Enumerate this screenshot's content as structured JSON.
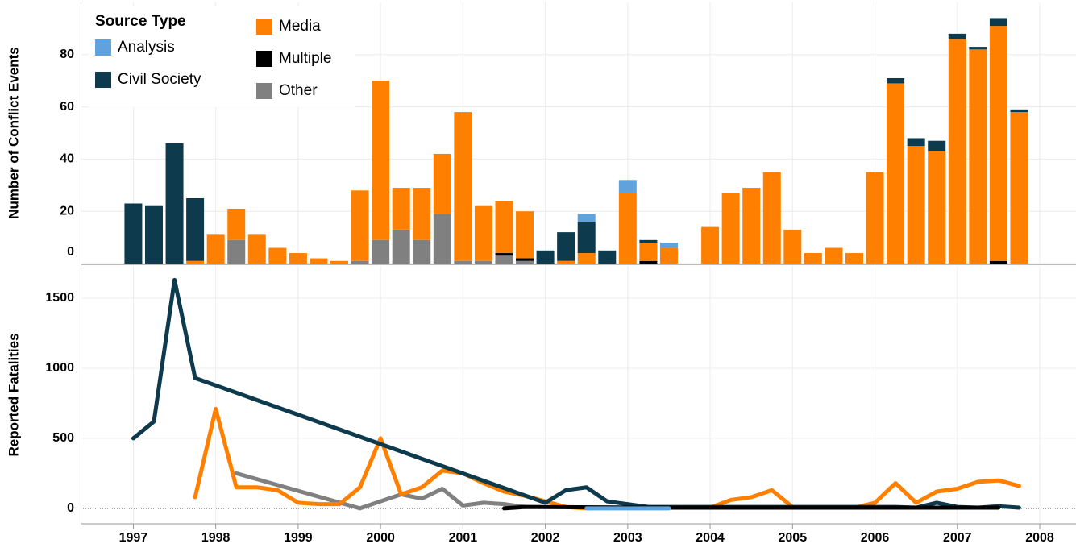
{
  "chart_data": [
    {
      "type": "bar",
      "legend_title": "Source Type",
      "y_label": "Number of Conflict Events",
      "x": [
        1997,
        1997.25,
        1997.5,
        1997.75,
        1998,
        1998.25,
        1998.5,
        1998.75,
        1999,
        1999.25,
        1999.5,
        1999.75,
        2000,
        2000.25,
        2000.5,
        2000.75,
        2001,
        2001.25,
        2001.5,
        2001.75,
        2002,
        2002.25,
        2002.5,
        2002.75,
        2003,
        2003.25,
        2003.5,
        2003.75,
        2004,
        2004.25,
        2004.5,
        2004.75,
        2005,
        2005.25,
        2005.5,
        2005.75,
        2006,
        2006.25,
        2006.5,
        2006.75,
        2007,
        2007.25,
        2007.5,
        2007.75
      ],
      "xlim": [
        1996.36,
        2008.44
      ],
      "xticks": [
        1997,
        1998,
        1999,
        2000,
        2001,
        2002,
        2003,
        2004,
        2005,
        2006,
        2007,
        2008
      ],
      "ylim": [
        0,
        100
      ],
      "yticks": [
        0,
        20,
        40,
        60,
        80
      ],
      "grid": true,
      "series": [
        {
          "name": "Other",
          "color": "#808080",
          "values": [
            0,
            0,
            0,
            0,
            0,
            9,
            0,
            0,
            0,
            0,
            0,
            1,
            9,
            13,
            9,
            19,
            1,
            1,
            3,
            1,
            0,
            0,
            0,
            0,
            0,
            0,
            0,
            0,
            0,
            0,
            0,
            0,
            0,
            0,
            0,
            0,
            0,
            0,
            0,
            0,
            0,
            0,
            0,
            0
          ]
        },
        {
          "name": "Multiple",
          "color": "#000000",
          "values": [
            0,
            0,
            0,
            0,
            0,
            0,
            0,
            0,
            0,
            0,
            0,
            0,
            0,
            0,
            0,
            0,
            0,
            0,
            1,
            1,
            0,
            0,
            0,
            0,
            0,
            1,
            0,
            0,
            0,
            0,
            0,
            0,
            0,
            0,
            0,
            0,
            0,
            0,
            0,
            0,
            0,
            0,
            1,
            0
          ]
        },
        {
          "name": "Media",
          "color": "#ff8000",
          "values": [
            0,
            0,
            0,
            1,
            11,
            12,
            11,
            6,
            4,
            2,
            1,
            27,
            61,
            16,
            20,
            23,
            57,
            21,
            20,
            18,
            0,
            1,
            4,
            0,
            27,
            7,
            6,
            0,
            14,
            27,
            29,
            35,
            13,
            4,
            6,
            4,
            35,
            69,
            45,
            43,
            86,
            82,
            90,
            58
          ]
        },
        {
          "name": "Civil Society",
          "color": "#0d3a4c",
          "values": [
            23,
            22,
            46,
            24,
            0,
            0,
            0,
            0,
            0,
            0,
            0,
            0,
            0,
            0,
            0,
            0,
            0,
            0,
            0,
            0,
            5,
            11,
            12,
            5,
            0,
            1,
            0,
            0,
            0,
            0,
            0,
            0,
            0,
            0,
            0,
            0,
            0,
            2,
            3,
            4,
            2,
            1,
            3,
            1
          ]
        },
        {
          "name": "Analysis",
          "color": "#5fa2dd",
          "values": [
            0,
            0,
            0,
            0,
            0,
            0,
            0,
            0,
            0,
            0,
            0,
            0,
            0,
            0,
            0,
            0,
            0,
            0,
            0,
            0,
            0,
            0,
            3,
            0,
            5,
            0,
            2,
            0,
            0,
            0,
            0,
            0,
            0,
            0,
            0,
            0,
            0,
            0,
            0,
            0,
            0,
            0,
            0,
            0
          ]
        }
      ]
    },
    {
      "type": "line",
      "y_label": "Reported Fatalities",
      "xlim": [
        1996.36,
        2008.44
      ],
      "xticks": [
        1997,
        1998,
        1999,
        2000,
        2001,
        2002,
        2003,
        2004,
        2005,
        2006,
        2007,
        2008
      ],
      "ylim": [
        -110,
        1730
      ],
      "yticks": [
        0,
        500,
        1000,
        1500
      ],
      "grid": true,
      "series": [
        {
          "color": "#808080",
          "x": [
            1998.25,
            1999.75,
            2000,
            2000.25,
            2000.5,
            2000.75,
            2001,
            2001.25,
            2001.5,
            2001.75
          ],
          "values": [
            250,
            0,
            50,
            100,
            70,
            140,
            20,
            40,
            30,
            10
          ]
        },
        {
          "color": "#ff8000",
          "x": [
            1997.75,
            1998,
            1998.25,
            1998.5,
            1998.75,
            1999,
            1999.25,
            1999.5,
            1999.75,
            2000,
            2000.25,
            2000.5,
            2000.75,
            2001,
            2001.25,
            2001.5,
            2001.75,
            2002.25,
            2002.5,
            2003,
            2003.25,
            2003.5,
            2004,
            2004.25,
            2004.5,
            2004.75,
            2005,
            2005.25,
            2005.5,
            2005.75,
            2006,
            2006.25,
            2006.5,
            2006.75,
            2007,
            2007.25,
            2007.5,
            2007.75
          ],
          "values": [
            80,
            710,
            150,
            150,
            130,
            40,
            30,
            30,
            150,
            500,
            100,
            150,
            270,
            250,
            180,
            120,
            90,
            10,
            0,
            5,
            5,
            5,
            5,
            60,
            80,
            130,
            10,
            5,
            5,
            5,
            40,
            180,
            40,
            120,
            140,
            190,
            200,
            160
          ]
        },
        {
          "color": "#0d3a4c",
          "x": [
            1997,
            1997.25,
            1997.5,
            1997.75,
            2002,
            2002.25,
            2002.5,
            2002.75,
            2003.25,
            2006.25,
            2006.5,
            2006.75,
            2007,
            2007.25,
            2007.5,
            2007.75
          ],
          "values": [
            500,
            620,
            1630,
            930,
            40,
            130,
            150,
            50,
            10,
            10,
            5,
            40,
            10,
            5,
            15,
            5
          ]
        },
        {
          "color": "#000000",
          "x": [
            2001.5,
            2001.75,
            2003.25,
            2007.5
          ],
          "values": [
            0,
            10,
            5,
            5
          ]
        },
        {
          "color": "#5fa2dd",
          "x": [
            2002.5,
            2003,
            2003.5
          ],
          "values": [
            0,
            0,
            0
          ]
        }
      ]
    }
  ]
}
